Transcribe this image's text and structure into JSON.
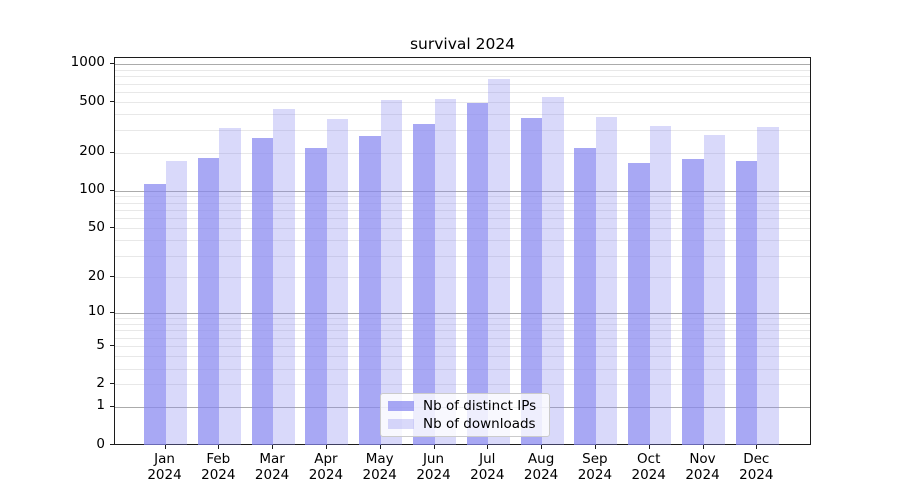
{
  "chart_data": {
    "type": "bar",
    "title": "survival 2024",
    "categories": [
      "Jan 2024",
      "Feb 2024",
      "Mar 2024",
      "Apr 2024",
      "May 2024",
      "Jun 2024",
      "Jul 2024",
      "Aug 2024",
      "Sep 2024",
      "Oct 2024",
      "Nov 2024",
      "Dec 2024"
    ],
    "series": [
      {
        "name": "Nb of distinct IPs",
        "color": "#8888f0",
        "alpha": 0.73,
        "values": [
          112,
          182,
          260,
          217,
          270,
          334,
          495,
          376,
          218,
          166,
          178,
          172
        ]
      },
      {
        "name": "Nb of downloads",
        "color": "#8888f0",
        "alpha": 0.32,
        "values": [
          173,
          310,
          445,
          366,
          519,
          529,
          761,
          549,
          385,
          325,
          276,
          318
        ]
      }
    ],
    "yscale": "log1p",
    "ylim": [
      0,
      1100
    ],
    "y_tick_labels": [
      "1000",
      "500",
      "200",
      "100",
      "50",
      "20",
      "10",
      "5",
      "2",
      "1",
      "0"
    ],
    "grid": true,
    "legend_position": "lower center",
    "grid_major_values": [
      1,
      10,
      100,
      1000
    ],
    "colors": {
      "major_grid": "#ababab",
      "minor_grid": "#e8e8e8",
      "spine": "#1c1c1c"
    }
  }
}
